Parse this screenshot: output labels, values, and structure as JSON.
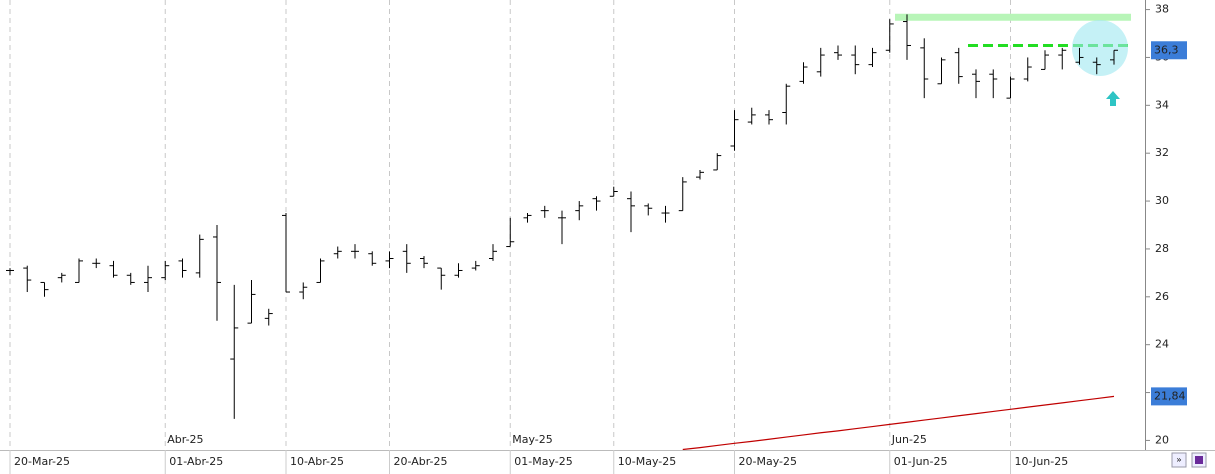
{
  "chart_data": {
    "type": "ohlc",
    "categories": [
      "20-Mar-25",
      null,
      null,
      null,
      null,
      null,
      null,
      null,
      null,
      "01-Abr-25",
      null,
      null,
      null,
      null,
      null,
      null,
      "10-Abr-25",
      null,
      null,
      null,
      null,
      null,
      "20-Abr-25",
      null,
      null,
      null,
      null,
      null,
      null,
      "01-May-25",
      null,
      null,
      null,
      null,
      null,
      "10-May-25",
      null,
      null,
      null,
      null,
      null,
      null,
      "20-May-25",
      null,
      null,
      null,
      null,
      null,
      null,
      null,
      null,
      "01-Jun-25",
      null,
      null,
      null,
      null,
      null,
      null,
      "10-Jun-25",
      null,
      null,
      null,
      null,
      null,
      null
    ],
    "month_labels": [
      "Abr-25",
      "May-25",
      "Jun-25"
    ],
    "open": [
      27.1,
      27.2,
      26.6,
      26.8,
      26.6,
      27.4,
      27.3,
      26.9,
      26.6,
      26.8,
      27.5,
      27.0,
      28.5,
      23.4,
      24.9,
      25.1,
      29.4,
      26.2,
      26.6,
      27.8,
      27.9,
      27.8,
      27.5,
      27.9,
      27.6,
      27.2,
      26.9,
      27.2,
      27.6,
      28.1,
      29.3,
      29.6,
      29.3,
      29.6,
      30.1,
      30.2,
      30.1,
      29.8,
      29.5,
      29.6,
      31.0,
      31.3,
      32.3,
      33.3,
      33.6,
      33.7,
      35.0,
      35.4,
      36.2,
      36.1,
      35.7,
      36.3,
      37.5,
      36.4,
      34.9,
      36.2,
      35.3,
      35.3,
      34.3,
      35.1,
      35.5,
      36.1,
      35.8,
      35.8,
      35.9
    ],
    "high": [
      27.2,
      27.3,
      26.6,
      27.0,
      27.6,
      27.6,
      27.5,
      27.0,
      27.3,
      27.5,
      27.6,
      28.6,
      29.0,
      26.5,
      26.7,
      25.5,
      29.5,
      26.6,
      27.6,
      28.1,
      28.2,
      27.9,
      27.9,
      28.2,
      27.7,
      27.2,
      27.4,
      27.5,
      28.2,
      29.3,
      29.5,
      29.8,
      29.6,
      30.0,
      30.2,
      30.6,
      30.4,
      29.9,
      29.8,
      31.0,
      31.3,
      32.0,
      33.8,
      33.9,
      33.8,
      34.9,
      35.8,
      36.4,
      36.5,
      36.5,
      36.4,
      37.6,
      37.8,
      36.8,
      36.0,
      36.4,
      35.5,
      35.5,
      35.2,
      36.0,
      36.3,
      36.4,
      36.4,
      36.0,
      36.3
    ],
    "low": [
      26.9,
      26.2,
      26.0,
      26.6,
      26.6,
      27.2,
      26.8,
      26.5,
      26.2,
      26.7,
      26.8,
      26.8,
      25.0,
      20.9,
      24.9,
      24.8,
      26.2,
      25.9,
      26.6,
      27.6,
      27.6,
      27.3,
      27.2,
      27.0,
      27.2,
      26.3,
      26.8,
      27.1,
      27.5,
      28.1,
      29.1,
      29.3,
      28.2,
      29.2,
      29.6,
      30.2,
      28.7,
      29.4,
      29.1,
      29.6,
      30.9,
      31.3,
      32.1,
      33.2,
      33.2,
      33.2,
      34.9,
      35.2,
      35.9,
      35.3,
      35.6,
      36.2,
      35.9,
      34.3,
      34.9,
      34.9,
      34.3,
      34.3,
      34.3,
      35.0,
      35.5,
      35.5,
      35.7,
      35.3,
      35.7
    ],
    "close": [
      27.1,
      26.7,
      26.3,
      26.9,
      27.5,
      27.4,
      26.9,
      26.6,
      26.8,
      27.3,
      27.1,
      28.4,
      26.6,
      24.7,
      26.1,
      25.3,
      26.2,
      26.4,
      27.5,
      27.9,
      27.9,
      27.4,
      27.6,
      27.4,
      27.4,
      26.9,
      27.1,
      27.3,
      27.9,
      28.3,
      29.4,
      29.6,
      29.3,
      29.8,
      30.0,
      30.4,
      29.8,
      29.7,
      29.5,
      30.8,
      31.2,
      31.9,
      33.4,
      33.6,
      33.4,
      34.8,
      35.6,
      36.1,
      36.1,
      35.7,
      36.2,
      37.4,
      36.5,
      35.1,
      35.9,
      35.2,
      35.0,
      35.1,
      35.1,
      35.6,
      36.1,
      36.3,
      36.0,
      35.7,
      36.3
    ],
    "color": "#000000",
    "moving_average": {
      "color": "#c00000",
      "values": [
        null,
        null,
        null,
        null,
        null,
        null,
        null,
        null,
        null,
        null,
        null,
        null,
        null,
        null,
        null,
        null,
        null,
        null,
        null,
        null,
        null,
        null,
        null,
        null,
        null,
        null,
        null,
        null,
        null,
        null,
        null,
        null,
        null,
        null,
        null,
        null,
        null,
        null,
        null,
        19.62,
        19.7,
        19.79,
        19.88,
        19.96,
        20.05,
        20.14,
        20.23,
        20.32,
        20.4,
        20.49,
        20.58,
        20.67,
        20.76,
        20.85,
        20.94,
        21.03,
        21.12,
        21.21,
        21.3,
        21.39,
        21.48,
        21.57,
        21.66,
        21.75,
        21.84
      ],
      "last": {
        "value": 21.84,
        "label": "21,84"
      }
    },
    "last_price": {
      "value": 36.3,
      "label": "36,3"
    },
    "resistance_level": 36.5,
    "high_band": 37.7,
    "ylim": [
      19.6,
      38.4
    ],
    "yticks": [
      20,
      22,
      24,
      26,
      28,
      30,
      32,
      34,
      36,
      38
    ],
    "xgrid": true,
    "grid": false
  }
}
